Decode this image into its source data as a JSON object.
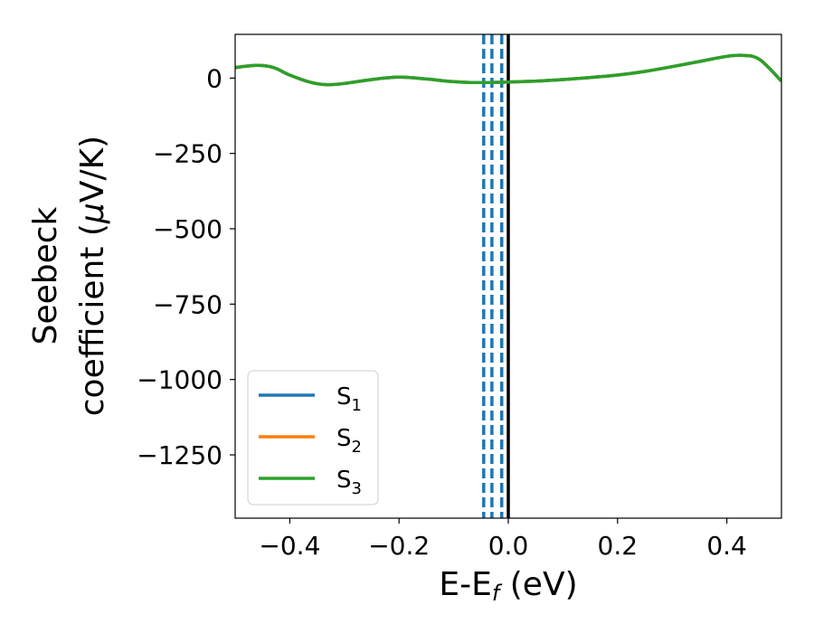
{
  "chart_data": {
    "type": "line",
    "xlabel": "E-E",
    "xlabel_sub": "f",
    "xlabel_unit": " (eV)",
    "ylabel_line1": "Seebeck",
    "ylabel_line2_text": "coefficient  (",
    "ylabel_line2_mu": "μ",
    "ylabel_line2_unit": "V/K)",
    "xlim": [
      -0.5,
      0.5
    ],
    "ylim": [
      -1460,
      145
    ],
    "xticks": [
      -0.4,
      -0.2,
      0.0,
      0.2,
      0.4
    ],
    "xtick_labels": [
      "−0.4",
      "−0.2",
      "0.0",
      "0.2",
      "0.4"
    ],
    "yticks": [
      0,
      -250,
      -500,
      -750,
      -1000,
      -1250
    ],
    "ytick_labels": [
      "0",
      "−250",
      "−500",
      "−750",
      "−1000",
      "−1250"
    ],
    "grid": false,
    "legend_position": "lower-left",
    "vertical_lines": [
      {
        "x": -0.045,
        "style": "dashed",
        "color": "#1f77b4"
      },
      {
        "x": -0.03,
        "style": "dashed",
        "color": "#1f77b4"
      },
      {
        "x": -0.012,
        "style": "dashed",
        "color": "#1f77b4"
      },
      {
        "x": 0.0,
        "style": "solid",
        "color": "#000000"
      }
    ],
    "series": [
      {
        "name": "S",
        "sub": "1",
        "color": "#1f77b4",
        "x": [
          -0.5,
          -0.46,
          -0.43,
          -0.4,
          -0.36,
          -0.33,
          -0.3,
          -0.25,
          -0.2,
          -0.15,
          -0.1,
          -0.05,
          0.0,
          0.05,
          0.1,
          0.15,
          0.2,
          0.25,
          0.3,
          0.35,
          0.4,
          0.43,
          0.46,
          0.5
        ],
        "y": [
          35,
          42,
          35,
          10,
          -15,
          -22,
          -18,
          -5,
          3,
          -3,
          -12,
          -15,
          -13,
          -10,
          -5,
          2,
          10,
          22,
          38,
          55,
          72,
          75,
          62,
          -10
        ]
      },
      {
        "name": "S",
        "sub": "2",
        "color": "#ff7f0e",
        "x": [
          -0.5,
          -0.46,
          -0.43,
          -0.4,
          -0.36,
          -0.33,
          -0.3,
          -0.25,
          -0.2,
          -0.15,
          -0.1,
          -0.05,
          0.0,
          0.05,
          0.1,
          0.15,
          0.2,
          0.25,
          0.3,
          0.35,
          0.4,
          0.43,
          0.46,
          0.5
        ],
        "y": [
          35,
          42,
          35,
          10,
          -15,
          -22,
          -18,
          -5,
          3,
          -3,
          -12,
          -15,
          -13,
          -10,
          -5,
          2,
          10,
          22,
          38,
          55,
          72,
          75,
          62,
          -10
        ]
      },
      {
        "name": "S",
        "sub": "3",
        "color": "#2ca02c",
        "x": [
          -0.5,
          -0.46,
          -0.43,
          -0.4,
          -0.36,
          -0.33,
          -0.3,
          -0.25,
          -0.2,
          -0.15,
          -0.1,
          -0.05,
          0.0,
          0.05,
          0.1,
          0.15,
          0.2,
          0.25,
          0.3,
          0.35,
          0.4,
          0.43,
          0.46,
          0.5
        ],
        "y": [
          35,
          42,
          35,
          10,
          -15,
          -22,
          -18,
          -5,
          3,
          -3,
          -12,
          -15,
          -13,
          -10,
          -5,
          2,
          10,
          22,
          38,
          55,
          72,
          75,
          62,
          -10
        ]
      }
    ]
  }
}
